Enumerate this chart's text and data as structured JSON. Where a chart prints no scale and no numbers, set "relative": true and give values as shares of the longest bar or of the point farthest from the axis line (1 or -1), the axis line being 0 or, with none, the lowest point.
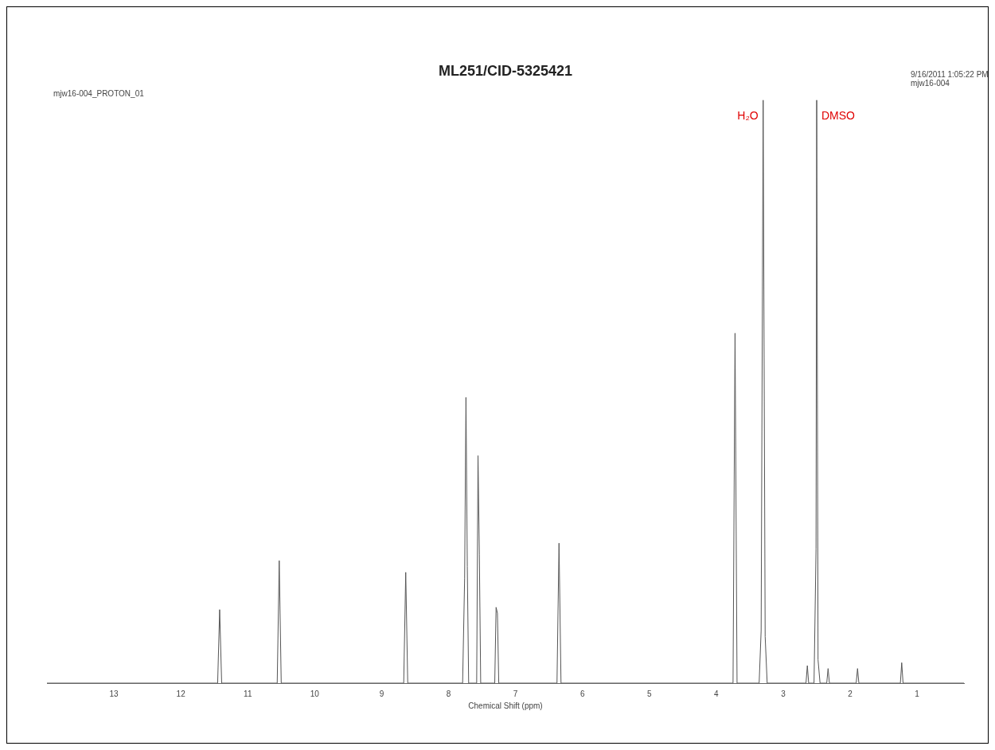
{
  "chart_data": {
    "type": "line",
    "title": "ML251/CID-5325421",
    "xlabel": "Chemical Shift (ppm)",
    "relative": true,
    "grid": false,
    "legend": false,
    "marker": "none",
    "line_style": "solid",
    "xlim": [
      14,
      0.3
    ],
    "xticks": [
      13,
      12,
      11,
      10,
      9,
      8,
      7,
      6,
      5,
      4,
      3,
      2,
      1
    ],
    "series": [
      {
        "color": "#555555",
        "x": [
          14,
          11.45,
          11.42,
          11.39,
          10.56,
          10.53,
          10.5,
          8.67,
          8.64,
          8.61,
          7.79,
          7.76,
          7.74,
          7.72,
          7.7,
          7.58,
          7.56,
          7.54,
          7.52,
          7.31,
          7.29,
          7.27,
          7.25,
          6.38,
          6.35,
          6.32,
          3.75,
          3.72,
          3.69,
          3.36,
          3.33,
          3.3,
          3.27,
          3.24,
          2.66,
          2.64,
          2.62,
          2.54,
          2.51,
          2.5,
          2.48,
          2.45,
          2.35,
          2.33,
          2.31,
          1.91,
          1.89,
          1.87,
          1.25,
          1.23,
          1.21,
          0.3
        ],
        "values": [
          0,
          0,
          0.126,
          0,
          0,
          0.21,
          0,
          0,
          0.19,
          0,
          0,
          0.18,
          0.49,
          0.2,
          0,
          0,
          0.39,
          0.22,
          0,
          0,
          0.13,
          0.12,
          0,
          0,
          0.24,
          0,
          0,
          0.6,
          0,
          0,
          0.09,
          1,
          0.08,
          0,
          0,
          0.03,
          0,
          0,
          0.23,
          1,
          0.04,
          0,
          0,
          0.025,
          0,
          0,
          0.025,
          0,
          0,
          0.035,
          0,
          0
        ]
      }
    ],
    "annotations": [
      "mjw16-004_PROTON_01",
      "9/16/2011 1:05:22 PM",
      "mjw16-004",
      {
        "text": "H₂O",
        "x": 3.3,
        "y": 1
      },
      {
        "text": "DMSO",
        "x": 2.5,
        "y": 1
      }
    ]
  }
}
